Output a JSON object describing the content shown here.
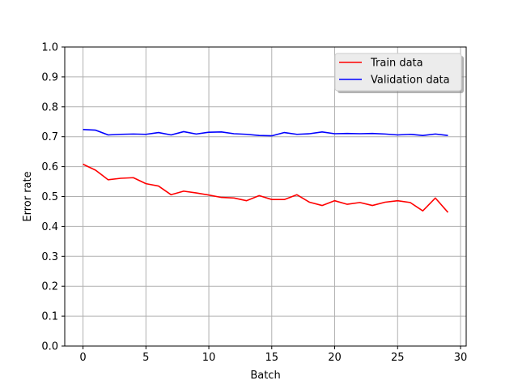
{
  "chart_data": {
    "type": "line",
    "xlabel": "Batch",
    "ylabel": "Error rate",
    "xlim": [
      -1.45,
      30.45
    ],
    "ylim": [
      0.0,
      1.0
    ],
    "xticks": [
      0,
      5,
      10,
      15,
      20,
      25,
      30
    ],
    "yticks": [
      0.0,
      0.1,
      0.2,
      0.3,
      0.4,
      0.5,
      0.6,
      0.7,
      0.8,
      0.9,
      1.0
    ],
    "grid": true,
    "legend": "top-right",
    "x": [
      0,
      1,
      2,
      3,
      4,
      5,
      6,
      7,
      8,
      9,
      10,
      11,
      12,
      13,
      14,
      15,
      16,
      17,
      18,
      19,
      20,
      21,
      22,
      23,
      24,
      25,
      26,
      27,
      28,
      29
    ],
    "series": [
      {
        "name": "Train data",
        "color": "#ff0000",
        "values": [
          0.608,
          0.588,
          0.556,
          0.561,
          0.563,
          0.543,
          0.535,
          0.506,
          0.518,
          0.512,
          0.505,
          0.497,
          0.495,
          0.486,
          0.503,
          0.49,
          0.49,
          0.506,
          0.481,
          0.47,
          0.486,
          0.474,
          0.48,
          0.47,
          0.481,
          0.486,
          0.48,
          0.452,
          0.495,
          0.447
        ]
      },
      {
        "name": "Validation data",
        "color": "#0000ff",
        "values": [
          0.724,
          0.722,
          0.706,
          0.708,
          0.709,
          0.708,
          0.714,
          0.706,
          0.717,
          0.709,
          0.715,
          0.716,
          0.71,
          0.708,
          0.704,
          0.703,
          0.714,
          0.708,
          0.71,
          0.716,
          0.71,
          0.711,
          0.71,
          0.711,
          0.709,
          0.706,
          0.708,
          0.704,
          0.709,
          0.704
        ]
      }
    ]
  }
}
